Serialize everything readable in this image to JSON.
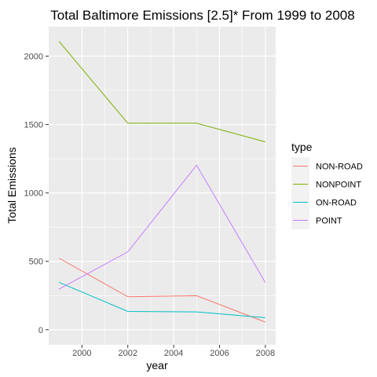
{
  "chart_data": {
    "type": "line",
    "title": "Total Baltimore Emissions [2.5]* From 1999 to 2008",
    "xlabel": "year",
    "ylabel": "Total Emissions",
    "x": [
      1999,
      2002,
      2005,
      2008
    ],
    "xlim": [
      1998.55,
      2008.45
    ],
    "ylim": [
      -110,
      2215
    ],
    "xticks": [
      2000,
      2002,
      2004,
      2006,
      2008
    ],
    "yticks": [
      0,
      500,
      1000,
      1500,
      2000
    ],
    "grid": true,
    "legend": {
      "title": "type",
      "position": "right"
    },
    "series": [
      {
        "name": "NON-ROAD",
        "color": "#F8766D",
        "values": [
          522.9,
          241.6,
          248.9,
          55.8
        ]
      },
      {
        "name": "NONPOINT",
        "color": "#7CAE00",
        "values": [
          2107.6,
          1509.5,
          1509.5,
          1373.2
        ]
      },
      {
        "name": "ON-ROAD",
        "color": "#00BFC4",
        "values": [
          346.8,
          134.3,
          130.4,
          88.3
        ]
      },
      {
        "name": "POINT",
        "color": "#C77CFF",
        "values": [
          296.8,
          569.3,
          1202.5,
          344.98
        ]
      }
    ]
  }
}
